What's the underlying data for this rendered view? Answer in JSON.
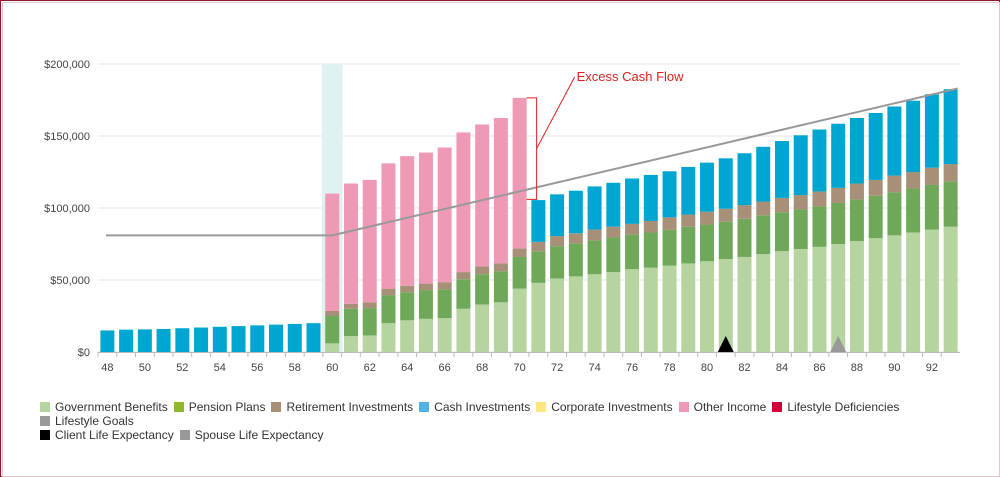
{
  "chart_data": {
    "type": "bar",
    "stacked": true,
    "title": "",
    "xlabel": "",
    "ylabel": "",
    "ylim": [
      0,
      200000
    ],
    "y_ticks": [
      0,
      50000,
      100000,
      150000,
      200000
    ],
    "y_tick_labels": [
      "$0",
      "$50,000",
      "$100,000",
      "$150,000",
      "$200,000"
    ],
    "x_tick_labels": [
      "48",
      "50",
      "52",
      "54",
      "56",
      "58",
      "60",
      "62",
      "64",
      "66",
      "68",
      "70",
      "72",
      "74",
      "76",
      "78",
      "80",
      "82",
      "84",
      "86",
      "88",
      "90",
      "92"
    ],
    "categories": [
      48,
      49,
      50,
      51,
      52,
      53,
      54,
      55,
      56,
      57,
      58,
      59,
      60,
      61,
      62,
      63,
      64,
      65,
      66,
      67,
      68,
      69,
      70,
      71,
      72,
      73,
      74,
      75,
      76,
      77,
      78,
      79,
      80,
      81,
      82,
      83,
      84,
      85,
      86,
      87,
      88,
      89,
      90,
      91,
      92,
      93
    ],
    "highlight_category": 60,
    "series": [
      {
        "name": "Government Benefits",
        "color": "#b5d49f",
        "values": [
          0,
          0,
          0,
          0,
          0,
          0,
          0,
          0,
          0,
          0,
          0,
          0,
          6000,
          11000,
          11500,
          20000,
          22000,
          23000,
          23500,
          30000,
          33000,
          34500,
          44000,
          48000,
          51000,
          52500,
          54000,
          55500,
          57500,
          58500,
          60000,
          61500,
          63000,
          64500,
          66000,
          68000,
          70000,
          71500,
          73000,
          75000,
          77000,
          79000,
          81000,
          83000,
          85000,
          87000
        ]
      },
      {
        "name": "Pension Plans",
        "color": "#70a85a",
        "values": [
          0,
          0,
          0,
          0,
          0,
          0,
          0,
          0,
          0,
          0,
          0,
          0,
          19000,
          19000,
          19000,
          19500,
          19500,
          20000,
          20000,
          20500,
          21000,
          21500,
          22000,
          22000,
          22500,
          23000,
          23500,
          24000,
          24000,
          24500,
          25000,
          25500,
          25500,
          26000,
          26500,
          27000,
          27000,
          27500,
          28000,
          28500,
          29000,
          29500,
          30000,
          30500,
          31000,
          31500
        ]
      },
      {
        "name": "Retirement Investments",
        "color": "#a89078",
        "values": [
          0,
          0,
          0,
          0,
          0,
          0,
          0,
          0,
          0,
          0,
          0,
          0,
          3500,
          3500,
          4000,
          4500,
          4500,
          4500,
          5000,
          5000,
          5500,
          5500,
          6000,
          6500,
          7000,
          7000,
          7500,
          7500,
          7500,
          8000,
          8500,
          8500,
          9000,
          9000,
          9500,
          9500,
          10000,
          10000,
          10500,
          10500,
          11000,
          11000,
          11500,
          11500,
          12000,
          12000
        ]
      },
      {
        "name": "Cash Investments",
        "color": "#00a6d2",
        "values": [
          15000,
          15500,
          15700,
          16000,
          16500,
          17000,
          17500,
          18000,
          18500,
          19000,
          19500,
          20000,
          0,
          0,
          0,
          0,
          0,
          0,
          0,
          0,
          0,
          0,
          0,
          29000,
          29000,
          29500,
          30000,
          30500,
          31500,
          32000,
          32000,
          33000,
          34000,
          35000,
          36000,
          38000,
          39500,
          41500,
          43000,
          44500,
          45500,
          46500,
          48000,
          49500,
          51000,
          52000
        ]
      },
      {
        "name": "Corporate Investments",
        "color": "#ffe680",
        "values": [
          0,
          0,
          0,
          0,
          0,
          0,
          0,
          0,
          0,
          0,
          0,
          0,
          0,
          0,
          0,
          0,
          0,
          0,
          0,
          0,
          0,
          0,
          0,
          0,
          0,
          0,
          0,
          0,
          0,
          0,
          0,
          0,
          0,
          0,
          0,
          0,
          0,
          0,
          0,
          0,
          0,
          0,
          0,
          0,
          0,
          0
        ]
      },
      {
        "name": "Other Income",
        "color": "#ef9ab4",
        "values": [
          0,
          0,
          0,
          0,
          0,
          0,
          0,
          0,
          0,
          0,
          0,
          0,
          81500,
          83500,
          85000,
          87000,
          90000,
          91000,
          93500,
          97000,
          98500,
          101000,
          104500,
          0,
          0,
          0,
          0,
          0,
          0,
          0,
          0,
          0,
          0,
          0,
          0,
          0,
          0,
          0,
          0,
          0,
          0,
          0,
          0,
          0,
          0,
          0
        ]
      }
    ],
    "lifestyle_goal_line": {
      "name": "Lifestyle Goals",
      "color": "#999999",
      "x": [
        48,
        60,
        93
      ],
      "y": [
        81000,
        81000,
        183000
      ]
    },
    "annotation": {
      "text": "Excess Cash Flow",
      "color": "#e02020",
      "x_from": 70,
      "y_low": 106000,
      "y_high": 176500
    },
    "markers": [
      {
        "name": "Client Life Expectancy",
        "x": 81,
        "color": "#000000"
      },
      {
        "name": "Spouse Life Expectancy",
        "x": 87,
        "color": "#999999"
      }
    ],
    "legend_position": "bottom"
  },
  "legend": [
    {
      "label": "Government Benefits",
      "color": "#b5d49f"
    },
    {
      "label": "Pension Plans",
      "color": "#8db82a"
    },
    {
      "label": "Retirement Investments",
      "color": "#a89078"
    },
    {
      "label": "Cash Investments",
      "color": "#4fb3e3"
    },
    {
      "label": "Corporate Investments",
      "color": "#ffe680"
    },
    {
      "label": "Other Income",
      "color": "#ef9ab4"
    },
    {
      "label": "Lifestyle Deficiencies",
      "color": "#d00038"
    },
    {
      "label": "Lifestyle Goals",
      "color": "#999999"
    },
    {
      "label": "Client Life Expectancy",
      "color": "#000000"
    },
    {
      "label": "Spouse Life Expectancy",
      "color": "#999999"
    }
  ]
}
